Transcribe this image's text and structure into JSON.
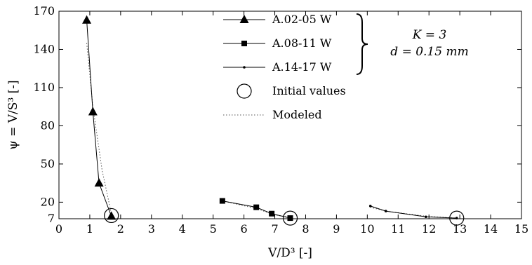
{
  "chart_data": {
    "type": "scatter",
    "xlabel": "V/D³ [-]",
    "ylabel": "ψ = V/S³ [-]",
    "xlim": [
      0,
      15
    ],
    "ylim": [
      7,
      170
    ],
    "xticks": [
      0,
      1,
      2,
      3,
      4,
      5,
      6,
      7,
      8,
      9,
      10,
      11,
      12,
      13,
      14,
      15
    ],
    "yticks": [
      7,
      20,
      50,
      80,
      110,
      140,
      170
    ],
    "grid": false,
    "legend_position": "top-center",
    "series": [
      {
        "name": "A.02-05 W",
        "marker": "triangle",
        "points": [
          [
            0.9,
            163
          ],
          [
            1.1,
            91
          ],
          [
            1.3,
            35
          ],
          [
            1.7,
            9
          ]
        ]
      },
      {
        "name": "A.08-11 W",
        "marker": "square",
        "points": [
          [
            5.3,
            21
          ],
          [
            6.4,
            16
          ],
          [
            6.9,
            11
          ],
          [
            7.5,
            7.5
          ]
        ]
      },
      {
        "name": "A.14-17 W",
        "marker": "dot",
        "points": [
          [
            10.1,
            17
          ],
          [
            10.6,
            13
          ],
          [
            11.9,
            8.5
          ],
          [
            12.9,
            7.5
          ]
        ]
      }
    ],
    "initial_values": {
      "name": "Initial values",
      "points": [
        [
          1.7,
          9.5
        ],
        [
          7.5,
          7.5
        ],
        [
          12.9,
          7.5
        ]
      ]
    },
    "modeled": {
      "name": "Modeled",
      "segments": [
        [
          [
            0.9,
            145
          ],
          [
            1.1,
            95
          ],
          [
            1.4,
            45
          ],
          [
            1.7,
            11
          ]
        ],
        [
          [
            5.3,
            21
          ],
          [
            6.4,
            15
          ],
          [
            7.0,
            10
          ],
          [
            7.5,
            8
          ]
        ],
        [
          [
            10.1,
            16
          ],
          [
            10.6,
            13
          ],
          [
            11.9,
            9
          ],
          [
            12.9,
            7.5
          ]
        ]
      ]
    },
    "annotation": {
      "line1": "K = 3",
      "line2": "d = 0.15 mm"
    }
  }
}
